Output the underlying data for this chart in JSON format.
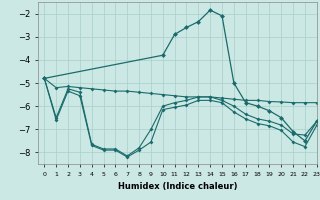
{
  "xlabel": "Humidex (Indice chaleur)",
  "bg_color": "#cce8e4",
  "grid_color": "#aacfcc",
  "line_color": "#1a6b6b",
  "xlim": [
    -0.5,
    23
  ],
  "ylim": [
    -8.5,
    -1.5
  ],
  "yticks": [
    -8,
    -7,
    -6,
    -5,
    -4,
    -3,
    -2
  ],
  "xtick_labels": [
    "0",
    "1",
    "2",
    "3",
    "4",
    "5",
    "6",
    "7",
    "8",
    "9",
    "10",
    "11",
    "12",
    "13",
    "14",
    "15",
    "16",
    "17",
    "18",
    "19",
    "20",
    "21",
    "22",
    "23"
  ],
  "bell_x": [
    0,
    10,
    11,
    12,
    13,
    14,
    15,
    16,
    17,
    18,
    19,
    20,
    21,
    22,
    23
  ],
  "bell_y": [
    -4.8,
    -3.8,
    -2.9,
    -2.6,
    -2.35,
    -1.85,
    -2.1,
    -5.0,
    -5.85,
    -6.0,
    -6.2,
    -6.5,
    -7.1,
    -7.5,
    -6.65
  ],
  "line_upper_x": [
    0,
    1,
    2,
    3,
    4,
    5,
    6,
    7,
    8,
    9,
    10,
    11,
    12,
    13,
    14,
    15,
    16,
    17,
    18,
    19,
    20,
    21,
    22,
    23
  ],
  "line_upper_y": [
    -4.8,
    -5.2,
    -5.15,
    -5.2,
    -5.25,
    -5.3,
    -5.35,
    -5.35,
    -5.4,
    -5.45,
    -5.5,
    -5.55,
    -5.6,
    -5.6,
    -5.6,
    -5.65,
    -5.7,
    -5.75,
    -5.75,
    -5.8,
    -5.82,
    -5.85,
    -5.85,
    -5.85
  ],
  "line_mid_x": [
    0,
    1,
    2,
    3,
    4,
    5,
    6,
    7,
    8,
    9,
    10,
    11,
    12,
    13,
    14,
    15,
    16,
    17,
    18,
    19,
    20,
    21,
    22,
    23
  ],
  "line_mid_y": [
    -4.8,
    -6.5,
    -5.25,
    -5.4,
    -7.65,
    -7.85,
    -7.85,
    -8.15,
    -7.8,
    -7.0,
    -6.0,
    -5.85,
    -5.75,
    -5.6,
    -5.6,
    -5.75,
    -6.0,
    -6.35,
    -6.55,
    -6.65,
    -6.82,
    -7.2,
    -7.25,
    -6.65
  ],
  "line_lower_x": [
    0,
    1,
    2,
    3,
    4,
    5,
    6,
    7,
    8,
    9,
    10,
    11,
    12,
    13,
    14,
    15,
    16,
    17,
    18,
    19,
    20,
    21,
    22,
    23
  ],
  "line_lower_y": [
    -4.8,
    -6.6,
    -5.35,
    -5.55,
    -7.7,
    -7.9,
    -7.9,
    -8.2,
    -7.9,
    -7.55,
    -6.15,
    -6.05,
    -5.95,
    -5.75,
    -5.75,
    -5.85,
    -6.25,
    -6.55,
    -6.75,
    -6.85,
    -7.05,
    -7.55,
    -7.75,
    -6.82
  ]
}
